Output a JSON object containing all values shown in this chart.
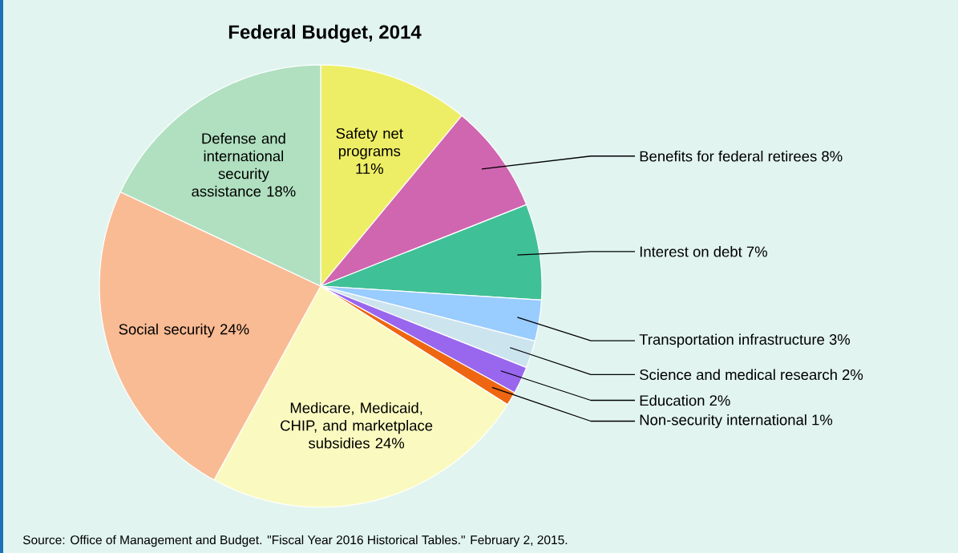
{
  "chart_data": {
    "type": "pie",
    "title": "Federal Budget, 2014",
    "categories": [
      "Safety net programs 11%",
      "Benefits for federal retirees 8%",
      "Interest on debt 7%",
      "Transportation infrastructure 3%",
      "Science and medical research 2%",
      "Education 2%",
      "Non-security international 1%",
      "Medicare, Medicaid, CHIP, and marketplace subsidies 24%",
      "Social security 24%",
      "Defense and international security assistance 18%"
    ],
    "values": [
      11,
      8,
      7,
      3,
      2,
      2,
      1,
      24,
      24,
      18
    ],
    "colors": [
      "#eeee66",
      "#d066b0",
      "#40c096",
      "#99ccff",
      "#cce4ee",
      "#9966ee",
      "#ee6611",
      "#fafac0",
      "#f9bb94",
      "#b0e0c0"
    ],
    "annotations": [
      "Source: Office of Management and Budget. \"Fiscal Year 2016 Historical Tables.\" February 2, 2015."
    ]
  }
}
